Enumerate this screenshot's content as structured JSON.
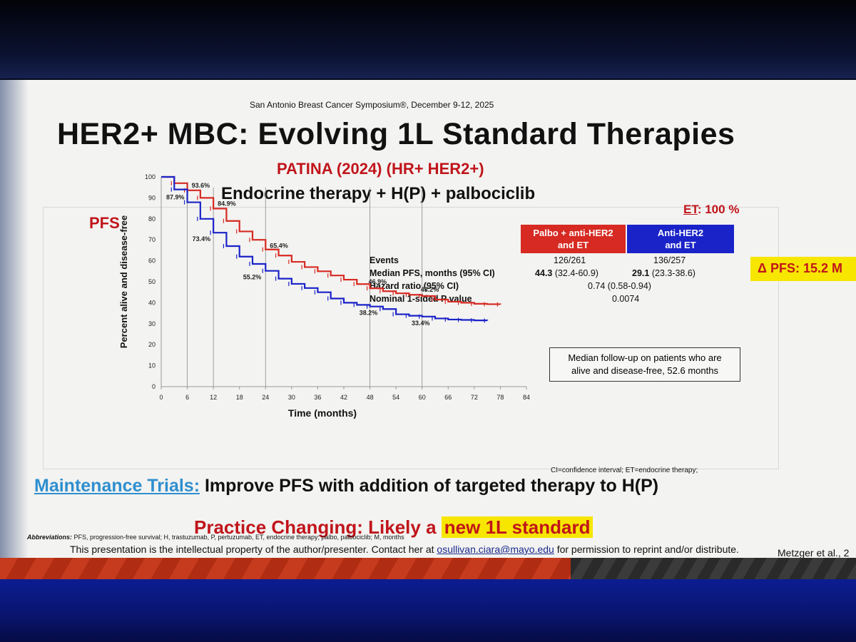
{
  "slide": {
    "conference": "San Antonio Breast Cancer Symposium®, December 9-12, 2025",
    "title": "HER2+ MBC: Evolving 1L Standard Therapies",
    "trial": "PATINA (2024) (HR+ HER2+)",
    "regimen": "Endocrine therapy + H(P) + palbociclib",
    "panel_label": "PFS",
    "et_label": "ET",
    "et_value": ": 100 %",
    "delta_pfs": "Δ PFS: 15.2 M",
    "maintenance_link": "Maintenance Trials:",
    "maintenance_text": " Improve PFS with addition of targeted therapy to H(P)",
    "practice_prefix": "Practice Changing: Likely a ",
    "practice_highlight": "new 1L standard",
    "abbr_label": "Abbreviations:",
    "abbr_text": " PFS, progression-free survival; H, trastuzumab, P, pertuzumab, ET, endocrine therapy; palbo, palbociclib; M, months",
    "ip_text": "This presentation is the intellectual property of the author/presenter. Contact her at ",
    "ip_email": "osullivan.ciara@mayo.edu",
    "ip_suffix": " for permission to reprint and/or distribute.",
    "reference": "Metzger et al., 2",
    "footnote": "CI=confidence interval; ET=endocrine therapy;",
    "followup_line1": "Median follow-up on patients who are",
    "followup_line2": "alive and disease-free, 52.6 months"
  },
  "legend": {
    "red_line1": "Palbo + anti-HER2",
    "red_line2": "and ET",
    "blue_line1": "Anti-HER2",
    "blue_line2": "and ET"
  },
  "stats": {
    "labels": [
      "Events",
      "Median PFS, months (95% CI)",
      "Hazard ratio (95% CI)",
      "Nominal 1-sided P value"
    ],
    "red_events": "126/261",
    "blue_events": "136/257",
    "red_median": "44.3",
    "red_median_ci": " (32.4-60.9)",
    "blue_median": "29.1",
    "blue_median_ci": " (23.3-38.6)",
    "hazard_ratio": "0.74 (0.58-0.94)",
    "p_value": "0.0074"
  },
  "colors": {
    "palbo": "#d62a22",
    "control": "#1a23c8",
    "accent_red": "#c0151b",
    "highlight": "#f7e600"
  },
  "chart_data": {
    "type": "line",
    "xlabel": "Time (months)",
    "ylabel": "Percent alive and disease-free",
    "xlim": [
      0,
      84
    ],
    "ylim": [
      0,
      100
    ],
    "xticks": [
      0,
      6,
      12,
      18,
      24,
      30,
      36,
      42,
      48,
      54,
      60,
      66,
      72,
      78,
      84
    ],
    "yticks": [
      0,
      10,
      20,
      30,
      40,
      50,
      60,
      70,
      80,
      90,
      100
    ],
    "series": [
      {
        "name": "Palbo + anti-HER2 and ET",
        "color": "#d62a22",
        "x": [
          0,
          3,
          6,
          9,
          12,
          15,
          18,
          21,
          24,
          27,
          30,
          33,
          36,
          39,
          42,
          45,
          48,
          51,
          54,
          57,
          60,
          63,
          66,
          69,
          72,
          75,
          78
        ],
        "y": [
          100,
          97,
          93.6,
          90,
          84.9,
          79,
          74,
          70,
          65.4,
          62.5,
          59.5,
          57,
          55,
          53,
          51,
          48.9,
          46.9,
          45.5,
          44.5,
          43.8,
          43.2,
          41.5,
          40.5,
          40,
          39.5,
          39.3,
          39.2
        ]
      },
      {
        "name": "Anti-HER2 and ET",
        "color": "#1a23c8",
        "x": [
          0,
          3,
          6,
          9,
          12,
          15,
          18,
          21,
          24,
          27,
          30,
          33,
          36,
          39,
          42,
          45,
          48,
          51,
          54,
          57,
          60,
          63,
          66,
          69,
          72,
          75
        ],
        "y": [
          100,
          94,
          87.9,
          80,
          73.4,
          67,
          62,
          58.5,
          55.2,
          51.5,
          49,
          47,
          45,
          42,
          40,
          39,
          38.2,
          37,
          34.5,
          33.8,
          33.4,
          32.5,
          32,
          31.8,
          31.6,
          31.5
        ]
      }
    ],
    "annotations": [
      {
        "label": "93.6%",
        "x": 6,
        "y": 93.6
      },
      {
        "label": "84.9%",
        "x": 12,
        "y": 84.9
      },
      {
        "label": "65.4%",
        "x": 24,
        "y": 65.4
      },
      {
        "label": "46.9%",
        "x": 48,
        "y": 46.9
      },
      {
        "label": "43.2%",
        "x": 60,
        "y": 43.2
      },
      {
        "label": "87.9%",
        "x": 6,
        "y": 87.9
      },
      {
        "label": "73.4%",
        "x": 12,
        "y": 73.4
      },
      {
        "label": "55.2%",
        "x": 24,
        "y": 55.2
      },
      {
        "label": "38.2%",
        "x": 48,
        "y": 38.2
      },
      {
        "label": "33.4%",
        "x": 60,
        "y": 33.4
      }
    ],
    "grid": false
  }
}
